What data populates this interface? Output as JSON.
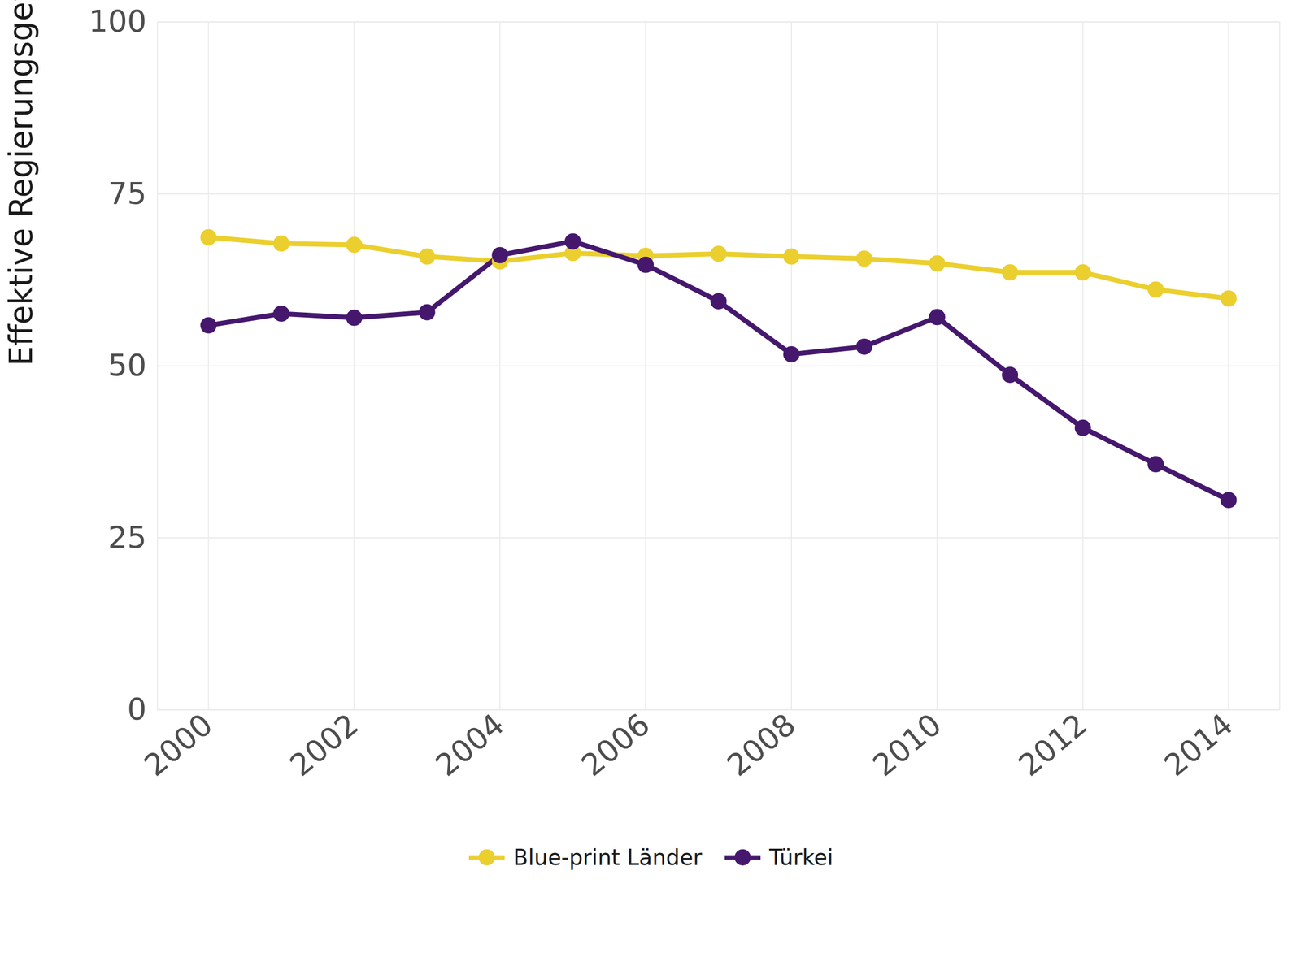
{
  "chart_data": {
    "type": "line",
    "x": [
      2000,
      2001,
      2002,
      2003,
      2004,
      2005,
      2006,
      2007,
      2008,
      2009,
      2010,
      2011,
      2012,
      2013,
      2014
    ],
    "series": [
      {
        "name": "Blue-print Länder",
        "color": "#EBCF2E",
        "marker": "circle",
        "values": [
          68.7,
          67.8,
          67.6,
          65.9,
          65.2,
          66.4,
          66.0,
          66.3,
          65.9,
          65.6,
          64.9,
          63.6,
          63.6,
          61.1,
          59.8
        ]
      },
      {
        "name": "Türkei",
        "color": "#45186E",
        "marker": "circle",
        "values": [
          55.9,
          57.6,
          57.0,
          57.8,
          66.1,
          68.1,
          64.7,
          59.4,
          51.7,
          52.8,
          57.1,
          48.7,
          41.0,
          35.7,
          30.5
        ]
      }
    ],
    "y_label": "Effektive Regierungsgewalt",
    "xlim": [
      1999.3,
      2014.7
    ],
    "xticks": [
      2000,
      2002,
      2004,
      2006,
      2008,
      2010,
      2012,
      2014
    ],
    "ylim": [
      0,
      100
    ],
    "yticks": [
      0,
      25,
      50,
      75,
      100
    ],
    "grid": true,
    "legend": "bottom"
  }
}
